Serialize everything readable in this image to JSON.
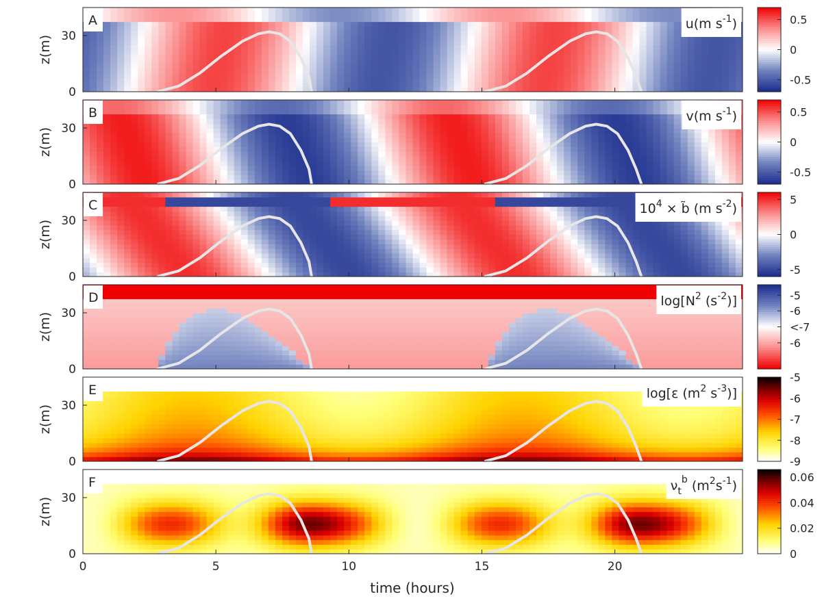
{
  "chart_data": {
    "type": "heatmap",
    "xlabel": "time (hours)",
    "ylabel": "z(m)",
    "xlim": [
      0,
      24.8
    ],
    "ylim": [
      0,
      45
    ],
    "xticks": [
      "0",
      "5",
      "10",
      "15",
      "20"
    ],
    "xtick_values": [
      0,
      5,
      10,
      15,
      20
    ],
    "yticks": [
      "0",
      "30"
    ],
    "ytick_values": [
      0,
      30
    ],
    "overlay_curve": {
      "color": "#e6e6e6",
      "cycles": [
        {
          "x": [
            2.8,
            3.6,
            4.4,
            5.2,
            6.0,
            6.6,
            7.0,
            7.4,
            7.8,
            8.2,
            8.5,
            8.6
          ],
          "z": [
            0,
            3,
            10,
            19,
            27,
            31,
            32,
            31,
            27,
            18,
            8,
            0
          ]
        },
        {
          "x": [
            15.1,
            15.9,
            16.7,
            17.5,
            18.3,
            18.9,
            19.3,
            19.7,
            20.1,
            20.5,
            20.8,
            21.0
          ],
          "z": [
            0,
            3,
            10,
            19,
            27,
            31,
            32,
            31,
            27,
            18,
            8,
            0
          ]
        }
      ]
    },
    "panels": [
      {
        "letter": "A",
        "quantity": "u",
        "units": "(m s",
        "units_sup": "-1",
        "units_end": ")",
        "colormap": "diverging",
        "colorbar_ticks": [
          "0.5",
          "0",
          "-0.5"
        ],
        "colorbar_tick_values": [
          0.5,
          0,
          -0.5
        ],
        "clim": [
          -0.7,
          0.7
        ]
      },
      {
        "letter": "B",
        "quantity": "v",
        "units": "(m s",
        "units_sup": "-1",
        "units_end": ")",
        "colormap": "diverging",
        "colorbar_ticks": [
          "0.5",
          "0",
          "-0.5"
        ],
        "colorbar_tick_values": [
          0.5,
          0,
          -0.5
        ],
        "clim": [
          -0.7,
          0.7
        ]
      },
      {
        "letter": "C",
        "quantity": "10",
        "quantity_sup": "4",
        "quantity_mid": " × b̃ ",
        "units": "(m s",
        "units_sup": "-2",
        "units_end": ")",
        "colormap": "diverging",
        "colorbar_ticks": [
          "5",
          "0",
          "-5"
        ],
        "colorbar_tick_values": [
          5,
          0,
          -5
        ],
        "clim": [
          -6,
          6
        ]
      },
      {
        "letter": "D",
        "quantity": "log[N",
        "quantity_sup": "2",
        "units": " (s",
        "units_sup": "-2",
        "units_end": ")]",
        "colormap": "diverging-reversed",
        "colorbar_ticks": [
          "-5",
          "-6",
          "<-7",
          "-6"
        ],
        "colorbar_tick_values": [
          0.75,
          0.38,
          0,
          -0.38
        ],
        "clim": [
          -1,
          1
        ]
      },
      {
        "letter": "E",
        "quantity": "log[ε",
        "units": " (m",
        "units_sup": "2",
        "units_mid": " s",
        "units_sup2": "-3",
        "units_end": ")]",
        "colormap": "hot-reversed",
        "colorbar_ticks": [
          "-5",
          "-6",
          "-7",
          "-8",
          "-9"
        ],
        "colorbar_tick_values": [
          -5,
          -6,
          -7,
          -8,
          -9
        ],
        "clim": [
          -9,
          -5
        ]
      },
      {
        "letter": "F",
        "quantity": "ν",
        "quantity_sub": "t",
        "quantity_sup": "b",
        "units": " (m",
        "units_sup": "2",
        "units_mid": "s",
        "units_sup2": "-1",
        "units_end": ")",
        "colormap": "hot-reversed",
        "colorbar_ticks": [
          "0.06",
          "0.04",
          "0.02",
          "0"
        ],
        "colorbar_tick_values": [
          0.06,
          0.04,
          0.02,
          0
        ],
        "clim": [
          0,
          0.066
        ]
      }
    ]
  }
}
